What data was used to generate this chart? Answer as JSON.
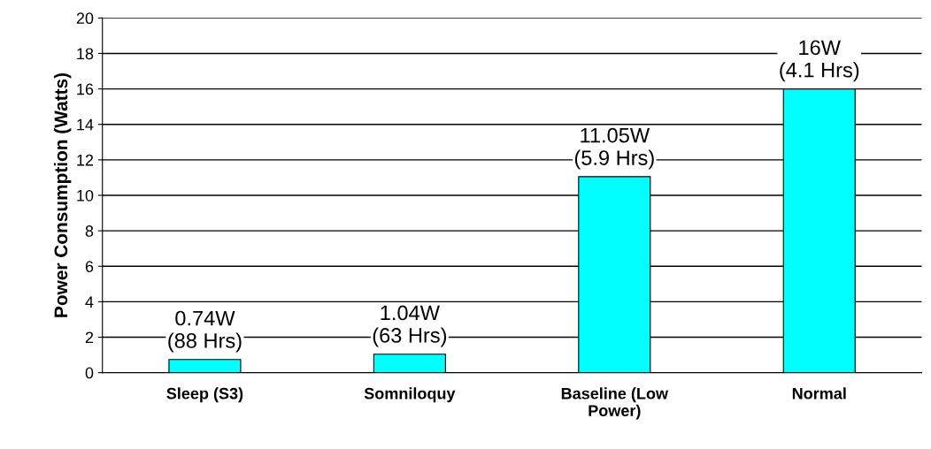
{
  "chart_data": {
    "type": "bar",
    "ylabel": "Power Consumption (Watts)",
    "categories": [
      "Sleep (S3)",
      "Somniloquy",
      "Baseline (Low Power)",
      "Normal"
    ],
    "values": [
      0.74,
      1.04,
      11.05,
      16
    ],
    "value_labels": [
      "0.74W\n(88 Hrs)",
      "1.04W\n(63 Hrs)",
      "11.05W\n(5.9 Hrs)",
      "16W\n(4.1 Hrs)"
    ],
    "color": "#00ffff",
    "ylim": [
      0,
      20
    ],
    "yticks": [
      0,
      2,
      4,
      6,
      8,
      10,
      12,
      14,
      16,
      18,
      20
    ],
    "grid": "y",
    "legend": false
  }
}
